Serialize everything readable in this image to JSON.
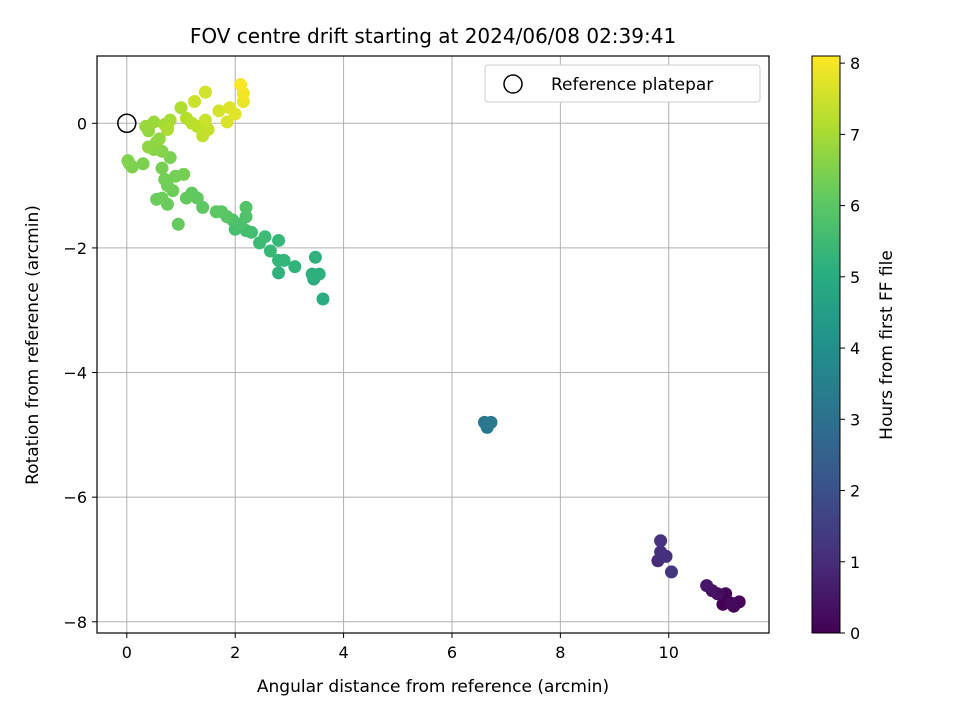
{
  "chart_data": {
    "type": "scatter",
    "title": "FOV centre drift starting at 2024/06/08 02:39:41",
    "xlabel": "Angular distance from reference (arcmin)",
    "ylabel": "Rotation from reference (arcmin)",
    "xlim": [
      -0.55,
      11.85
    ],
    "ylim": [
      -8.18,
      1.08
    ],
    "xticks": [
      0,
      2,
      4,
      6,
      8,
      10
    ],
    "yticks": [
      0,
      -2,
      -4,
      -6,
      -8
    ],
    "x_tick_labels": [
      "0",
      "2",
      "4",
      "6",
      "8",
      "10"
    ],
    "y_tick_labels": [
      "0",
      "−2",
      "−4",
      "−6",
      "−8"
    ],
    "grid": true,
    "legend": {
      "position": "top-right",
      "label": "Reference platepar"
    },
    "reference_point": {
      "x": 0,
      "y": 0
    },
    "colorbar": {
      "label": "Hours from first FF file",
      "range": [
        0,
        8.1
      ],
      "ticks": [
        0,
        1,
        2,
        3,
        4,
        5,
        6,
        7,
        8
      ],
      "tick_labels": [
        "0",
        "1",
        "2",
        "3",
        "4",
        "5",
        "6",
        "7",
        "8"
      ],
      "colormap": "viridis"
    },
    "points": [
      {
        "x": 11.0,
        "y": -7.72,
        "t": 0.0
      },
      {
        "x": 11.2,
        "y": -7.75,
        "t": 0.05
      },
      {
        "x": 11.05,
        "y": -7.55,
        "t": 0.1
      },
      {
        "x": 11.3,
        "y": -7.68,
        "t": 0.15
      },
      {
        "x": 11.15,
        "y": -7.7,
        "t": 0.2
      },
      {
        "x": 10.9,
        "y": -7.55,
        "t": 0.3
      },
      {
        "x": 10.8,
        "y": -7.5,
        "t": 0.4
      },
      {
        "x": 10.7,
        "y": -7.42,
        "t": 0.5
      },
      {
        "x": 9.8,
        "y": -7.02,
        "t": 1.0
      },
      {
        "x": 9.95,
        "y": -6.95,
        "t": 1.1
      },
      {
        "x": 9.85,
        "y": -6.88,
        "t": 1.15
      },
      {
        "x": 9.85,
        "y": -6.7,
        "t": 1.2
      },
      {
        "x": 10.05,
        "y": -7.2,
        "t": 1.3
      },
      {
        "x": 6.6,
        "y": -4.8,
        "t": 3.2
      },
      {
        "x": 6.65,
        "y": -4.88,
        "t": 3.25
      },
      {
        "x": 6.72,
        "y": -4.8,
        "t": 3.3
      },
      {
        "x": 3.62,
        "y": -2.82,
        "t": 5.0
      },
      {
        "x": 3.45,
        "y": -2.5,
        "t": 5.05
      },
      {
        "x": 3.55,
        "y": -2.42,
        "t": 5.1
      },
      {
        "x": 3.42,
        "y": -2.42,
        "t": 5.1
      },
      {
        "x": 3.48,
        "y": -2.15,
        "t": 5.15
      },
      {
        "x": 2.8,
        "y": -2.4,
        "t": 5.2
      },
      {
        "x": 3.1,
        "y": -2.3,
        "t": 5.25
      },
      {
        "x": 2.9,
        "y": -2.2,
        "t": 5.3
      },
      {
        "x": 2.8,
        "y": -2.2,
        "t": 5.35
      },
      {
        "x": 2.8,
        "y": -1.88,
        "t": 5.4
      },
      {
        "x": 2.65,
        "y": -2.05,
        "t": 5.45
      },
      {
        "x": 2.45,
        "y": -1.92,
        "t": 5.5
      },
      {
        "x": 2.55,
        "y": -1.82,
        "t": 5.55
      },
      {
        "x": 2.3,
        "y": -1.75,
        "t": 5.6
      },
      {
        "x": 2.2,
        "y": -1.72,
        "t": 5.65
      },
      {
        "x": 2.0,
        "y": -1.7,
        "t": 5.7
      },
      {
        "x": 2.1,
        "y": -1.62,
        "t": 5.75
      },
      {
        "x": 1.95,
        "y": -1.55,
        "t": 5.8
      },
      {
        "x": 2.2,
        "y": -1.5,
        "t": 5.85
      },
      {
        "x": 2.2,
        "y": -1.35,
        "t": 5.9
      },
      {
        "x": 1.85,
        "y": -1.5,
        "t": 5.95
      },
      {
        "x": 1.75,
        "y": -1.42,
        "t": 6.0
      },
      {
        "x": 1.65,
        "y": -1.42,
        "t": 6.02
      },
      {
        "x": 1.4,
        "y": -1.35,
        "t": 6.05
      },
      {
        "x": 1.3,
        "y": -1.2,
        "t": 6.08
      },
      {
        "x": 1.2,
        "y": -1.12,
        "t": 6.1
      },
      {
        "x": 1.1,
        "y": -1.2,
        "t": 6.12
      },
      {
        "x": 0.95,
        "y": -1.62,
        "t": 6.15
      },
      {
        "x": 0.75,
        "y": -1.3,
        "t": 6.2
      },
      {
        "x": 0.55,
        "y": -1.22,
        "t": 6.25
      },
      {
        "x": 0.65,
        "y": -1.2,
        "t": 6.28
      },
      {
        "x": 0.85,
        "y": -1.08,
        "t": 6.3
      },
      {
        "x": 0.75,
        "y": -1.0,
        "t": 6.32
      },
      {
        "x": 0.7,
        "y": -0.9,
        "t": 6.35
      },
      {
        "x": 0.9,
        "y": -0.85,
        "t": 6.38
      },
      {
        "x": 1.05,
        "y": -0.82,
        "t": 6.4
      },
      {
        "x": 0.65,
        "y": -0.72,
        "t": 6.42
      },
      {
        "x": 0.8,
        "y": -0.55,
        "t": 6.45
      },
      {
        "x": 0.3,
        "y": -0.65,
        "t": 6.48
      },
      {
        "x": 0.05,
        "y": -0.65,
        "t": 6.5
      },
      {
        "x": 0.1,
        "y": -0.7,
        "t": 6.52
      },
      {
        "x": 0.02,
        "y": -0.6,
        "t": 6.55
      },
      {
        "x": 0.65,
        "y": -0.45,
        "t": 6.6
      },
      {
        "x": 0.5,
        "y": -0.42,
        "t": 6.65
      },
      {
        "x": 0.4,
        "y": -0.38,
        "t": 6.7
      },
      {
        "x": 0.55,
        "y": -0.3,
        "t": 6.72
      },
      {
        "x": 0.6,
        "y": -0.25,
        "t": 6.75
      },
      {
        "x": 0.4,
        "y": -0.12,
        "t": 6.8
      },
      {
        "x": 0.35,
        "y": -0.05,
        "t": 6.85
      },
      {
        "x": 0.5,
        "y": 0.02,
        "t": 6.9
      },
      {
        "x": 0.75,
        "y": -0.05,
        "t": 6.95
      },
      {
        "x": 0.7,
        "y": -0.02,
        "t": 7.0
      },
      {
        "x": 0.8,
        "y": 0.05,
        "t": 7.05
      },
      {
        "x": 0.75,
        "y": -0.1,
        "t": 7.1
      },
      {
        "x": 1.0,
        "y": 0.25,
        "t": 7.15
      },
      {
        "x": 1.1,
        "y": 0.08,
        "t": 7.2
      },
      {
        "x": 1.2,
        "y": 0.0,
        "t": 7.25
      },
      {
        "x": 1.3,
        "y": -0.05,
        "t": 7.3
      },
      {
        "x": 1.4,
        "y": -0.2,
        "t": 7.35
      },
      {
        "x": 1.5,
        "y": -0.1,
        "t": 7.4
      },
      {
        "x": 1.45,
        "y": 0.05,
        "t": 7.45
      },
      {
        "x": 1.25,
        "y": 0.35,
        "t": 7.5
      },
      {
        "x": 1.45,
        "y": 0.5,
        "t": 7.55
      },
      {
        "x": 1.7,
        "y": 0.2,
        "t": 7.6
      },
      {
        "x": 1.85,
        "y": 0.02,
        "t": 7.65
      },
      {
        "x": 1.9,
        "y": 0.25,
        "t": 7.7
      },
      {
        "x": 2.0,
        "y": 0.15,
        "t": 7.75
      },
      {
        "x": 2.15,
        "y": 0.35,
        "t": 7.85
      },
      {
        "x": 2.15,
        "y": 0.48,
        "t": 7.95
      },
      {
        "x": 2.1,
        "y": 0.62,
        "t": 8.05
      }
    ]
  }
}
